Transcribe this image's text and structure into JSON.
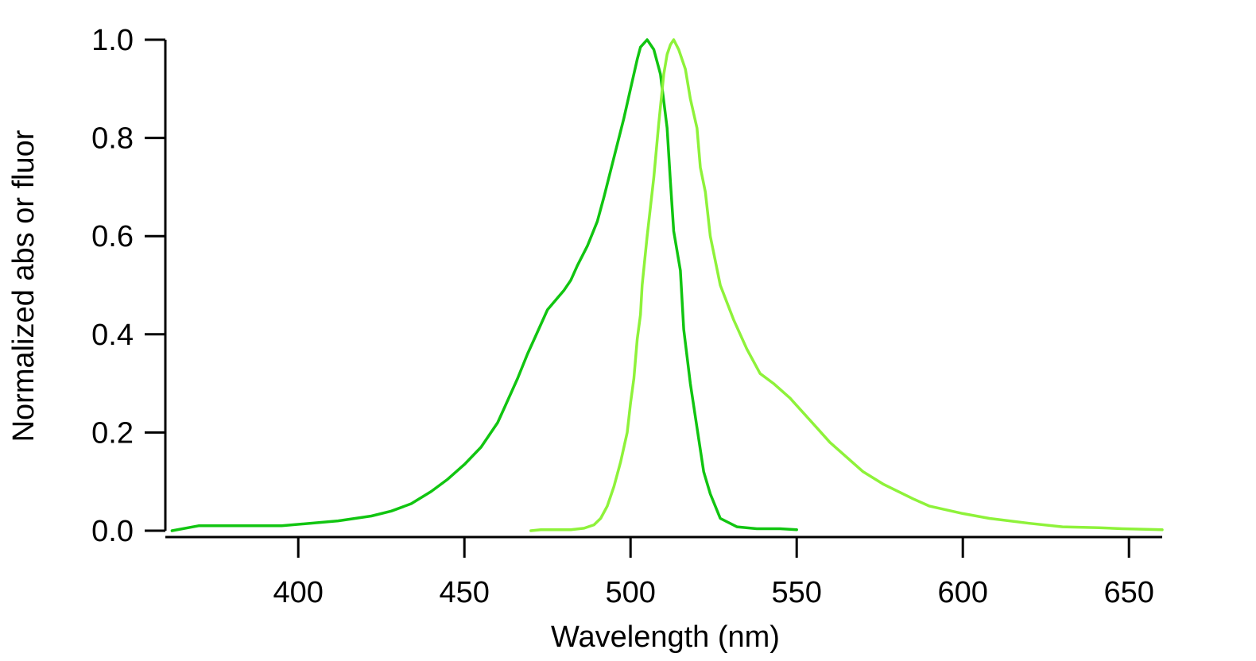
{
  "chart_data": {
    "type": "line",
    "title": "",
    "xlabel": "Wavelength (nm)",
    "ylabel": "Normalized abs or fluor",
    "xlim": [
      360,
      660
    ],
    "ylim": [
      0,
      1.0
    ],
    "x_ticks": [
      400,
      450,
      500,
      550,
      600,
      650
    ],
    "x_tick_labels": [
      "400",
      "450",
      "500",
      "550",
      "600",
      "650"
    ],
    "y_ticks": [
      0,
      0.2,
      0.4,
      0.6,
      0.8,
      1.0
    ],
    "y_tick_labels": [
      "0.0",
      "0.2",
      "0.4",
      "0.6",
      "0.8",
      "1.0"
    ],
    "grid": false,
    "legend": "none",
    "series": [
      {
        "color": "#11c511",
        "points": [
          [
            362,
            0.0
          ],
          [
            370,
            0.01
          ],
          [
            395,
            0.01
          ],
          [
            412,
            0.02
          ],
          [
            422,
            0.03
          ],
          [
            428,
            0.04
          ],
          [
            434,
            0.055
          ],
          [
            440,
            0.08
          ],
          [
            445,
            0.105
          ],
          [
            450,
            0.135
          ],
          [
            455,
            0.17
          ],
          [
            460,
            0.22
          ],
          [
            462,
            0.25
          ],
          [
            466,
            0.31
          ],
          [
            469,
            0.36
          ],
          [
            471,
            0.39
          ],
          [
            475,
            0.45
          ],
          [
            480,
            0.49
          ],
          [
            482,
            0.51
          ],
          [
            484,
            0.54
          ],
          [
            487,
            0.58
          ],
          [
            490,
            0.63
          ],
          [
            492,
            0.68
          ],
          [
            495,
            0.76
          ],
          [
            498,
            0.84
          ],
          [
            500,
            0.9
          ],
          [
            502,
            0.96
          ],
          [
            503,
            0.985
          ],
          [
            505,
            1.0
          ],
          [
            507,
            0.98
          ],
          [
            509,
            0.93
          ],
          [
            511,
            0.82
          ],
          [
            512,
            0.71
          ],
          [
            513,
            0.61
          ],
          [
            515,
            0.53
          ],
          [
            516,
            0.41
          ],
          [
            518,
            0.3
          ],
          [
            520,
            0.21
          ],
          [
            522,
            0.12
          ],
          [
            524,
            0.075
          ],
          [
            527,
            0.025
          ],
          [
            532,
            0.008
          ],
          [
            538,
            0.004
          ],
          [
            545,
            0.004
          ],
          [
            550,
            0.002
          ]
        ]
      },
      {
        "color": "#8ef23a",
        "points": [
          [
            470,
            0.0
          ],
          [
            473,
            0.002
          ],
          [
            482,
            0.002
          ],
          [
            486,
            0.005
          ],
          [
            489,
            0.012
          ],
          [
            491,
            0.025
          ],
          [
            493,
            0.05
          ],
          [
            495,
            0.09
          ],
          [
            497,
            0.14
          ],
          [
            499,
            0.2
          ],
          [
            500,
            0.26
          ],
          [
            501,
            0.31
          ],
          [
            502,
            0.39
          ],
          [
            503,
            0.44
          ],
          [
            503.5,
            0.5
          ],
          [
            505,
            0.6
          ],
          [
            507,
            0.72
          ],
          [
            508.5,
            0.83
          ],
          [
            510,
            0.93
          ],
          [
            511,
            0.97
          ],
          [
            512,
            0.99
          ],
          [
            513,
            1.0
          ],
          [
            514.5,
            0.98
          ],
          [
            516.5,
            0.94
          ],
          [
            518,
            0.88
          ],
          [
            520,
            0.82
          ],
          [
            521,
            0.74
          ],
          [
            522.5,
            0.69
          ],
          [
            524,
            0.6
          ],
          [
            527,
            0.5
          ],
          [
            531,
            0.43
          ],
          [
            535,
            0.37
          ],
          [
            539,
            0.32
          ],
          [
            543,
            0.3
          ],
          [
            548,
            0.27
          ],
          [
            552,
            0.24
          ],
          [
            556,
            0.21
          ],
          [
            560,
            0.18
          ],
          [
            565,
            0.15
          ],
          [
            570,
            0.12
          ],
          [
            576,
            0.095
          ],
          [
            585,
            0.065
          ],
          [
            590,
            0.05
          ],
          [
            600,
            0.035
          ],
          [
            608,
            0.025
          ],
          [
            620,
            0.015
          ],
          [
            630,
            0.008
          ],
          [
            641,
            0.006
          ],
          [
            648,
            0.004
          ],
          [
            660,
            0.002
          ]
        ]
      }
    ]
  }
}
